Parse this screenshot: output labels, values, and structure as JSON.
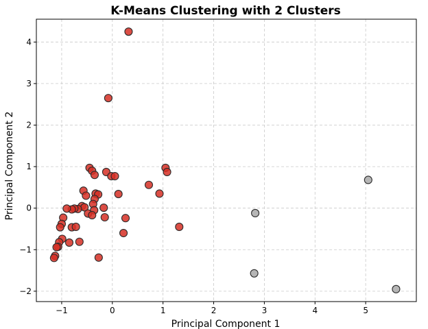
{
  "chart_data": {
    "type": "scatter",
    "title": "K-Means Clustering with 2 Clusters",
    "xlabel": "Principal Component 1",
    "ylabel": "Principal Component 2",
    "xlim": [
      -1.5,
      6.0
    ],
    "ylim": [
      -2.25,
      4.55
    ],
    "xticks": [
      -1,
      0,
      1,
      2,
      3,
      4,
      5
    ],
    "yticks": [
      -2,
      -1,
      0,
      1,
      2,
      3,
      4
    ],
    "xtick_labels": [
      "−1",
      "0",
      "1",
      "2",
      "3",
      "4",
      "5"
    ],
    "ytick_labels": [
      "−2",
      "−1",
      "0",
      "1",
      "2",
      "3",
      "4"
    ],
    "grid": true,
    "series": [
      {
        "color": "#d62f25",
        "points": [
          [
            0.32,
            4.25
          ],
          [
            -0.08,
            2.65
          ],
          [
            -0.45,
            0.97
          ],
          [
            -0.4,
            0.9
          ],
          [
            -0.35,
            0.8
          ],
          [
            -0.12,
            0.87
          ],
          [
            -0.02,
            0.77
          ],
          [
            0.05,
            0.77
          ],
          [
            1.05,
            0.97
          ],
          [
            1.08,
            0.87
          ],
          [
            0.72,
            0.56
          ],
          [
            0.93,
            0.35
          ],
          [
            0.12,
            0.34
          ],
          [
            -0.57,
            0.42
          ],
          [
            -0.52,
            0.3
          ],
          [
            -0.33,
            0.35
          ],
          [
            -0.28,
            0.33
          ],
          [
            -0.35,
            0.22
          ],
          [
            -0.38,
            0.1
          ],
          [
            -0.6,
            0.05
          ],
          [
            -0.55,
            0.02
          ],
          [
            -0.68,
            -0.02
          ],
          [
            -0.75,
            -0.01
          ],
          [
            -0.8,
            -0.03
          ],
          [
            -0.9,
            -0.01
          ],
          [
            -0.36,
            -0.05
          ],
          [
            -0.17,
            0.01
          ],
          [
            -0.48,
            -0.13
          ],
          [
            -0.4,
            -0.17
          ],
          [
            -0.15,
            -0.22
          ],
          [
            0.26,
            -0.24
          ],
          [
            -0.97,
            -0.23
          ],
          [
            -1.0,
            -0.38
          ],
          [
            -1.03,
            -0.46
          ],
          [
            -0.8,
            -0.46
          ],
          [
            -0.72,
            -0.45
          ],
          [
            1.32,
            -0.45
          ],
          [
            0.22,
            -0.6
          ],
          [
            -0.99,
            -0.74
          ],
          [
            -0.85,
            -0.83
          ],
          [
            -0.65,
            -0.81
          ],
          [
            -1.05,
            -0.82
          ],
          [
            -1.07,
            -0.93
          ],
          [
            -1.1,
            -0.94
          ],
          [
            -1.13,
            -1.15
          ],
          [
            -1.15,
            -1.2
          ],
          [
            -0.27,
            -1.19
          ]
        ]
      },
      {
        "color": "#a9a9a9",
        "points": [
          [
            2.82,
            -0.12
          ],
          [
            2.8,
            -1.57
          ],
          [
            5.05,
            0.68
          ],
          [
            5.6,
            -1.95
          ]
        ]
      }
    ]
  }
}
